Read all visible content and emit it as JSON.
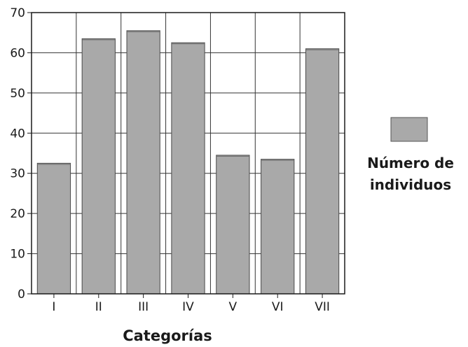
{
  "chart_data": {
    "type": "bar",
    "categories": [
      "I",
      "II",
      "III",
      "IV",
      "V",
      "VI",
      "VII"
    ],
    "series": [
      {
        "name": "Número de individuos",
        "values": [
          32.5,
          63.5,
          65.5,
          62.5,
          34.5,
          33.5,
          61
        ]
      }
    ],
    "xlabel": "Categorías",
    "ylabel": "",
    "ylim": [
      0,
      70
    ],
    "yticks": [
      0,
      10,
      20,
      30,
      40,
      50,
      60,
      70
    ],
    "grid": "horizontal and vertical",
    "legend": {
      "position": "right",
      "lines": [
        "Número de",
        "individuos"
      ]
    },
    "bar_color": "#a9a9a9"
  }
}
